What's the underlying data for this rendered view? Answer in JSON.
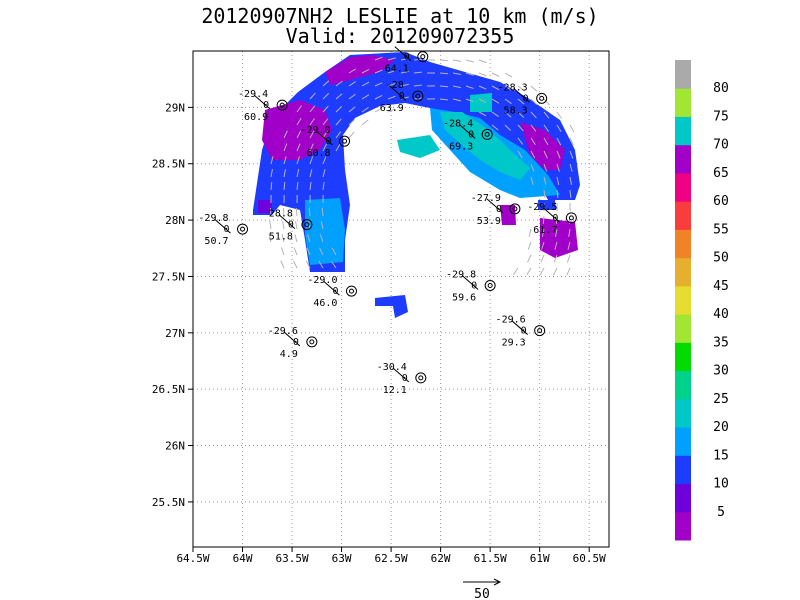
{
  "chart_data": {
    "type": "heatmap",
    "title": "20120907NH2 LESLIE at 10 km (m/s)",
    "subtitle": "Valid: 201209072355",
    "xlim": [
      -64.5,
      -60.3
    ],
    "ylim": [
      25.1,
      29.5
    ],
    "x_ticks": [
      "64.5W",
      "64W",
      "63.5W",
      "63W",
      "62.5W",
      "62W",
      "61.5W",
      "61W",
      "60.5W"
    ],
    "x_tick_values": [
      -64.5,
      -64,
      -63.5,
      -63,
      -62.5,
      -62,
      -61.5,
      -61,
      -60.5
    ],
    "y_ticks": [
      "25.5N",
      "26N",
      "26.5N",
      "27N",
      "27.5N",
      "28N",
      "28.5N",
      "29N"
    ],
    "y_tick_values": [
      25.5,
      26,
      26.5,
      27,
      27.5,
      28,
      28.5,
      29
    ],
    "grid": true,
    "colorbar": {
      "labels": [
        "5",
        "10",
        "15",
        "20",
        "25",
        "30",
        "35",
        "40",
        "45",
        "50",
        "55",
        "60",
        "65",
        "70",
        "75",
        "80"
      ],
      "colors": [
        "#a000c8",
        "#6e00dc",
        "#1e3cff",
        "#00a0ff",
        "#00c8c8",
        "#00d28c",
        "#00dc00",
        "#a0e632",
        "#e6dc32",
        "#e6af2d",
        "#f08228",
        "#fa3c3c",
        "#f00082",
        "#a000c8",
        "#00c8c8",
        "#a0e632",
        "#aaaaaa"
      ]
    },
    "stations": [
      {
        "lon": -64.0,
        "lat": 27.92,
        "temp": "-29.8",
        "value": "50.7"
      },
      {
        "lon": -63.35,
        "lat": 27.96,
        "temp": "28.8",
        "value": "51.8"
      },
      {
        "lon": -63.6,
        "lat": 29.02,
        "temp": "-29.4",
        "value": "60.9"
      },
      {
        "lon": -62.97,
        "lat": 28.7,
        "temp": "-29.0",
        "value": "60.8"
      },
      {
        "lon": -62.23,
        "lat": 29.1,
        "temp": "-28",
        "value": "63.9"
      },
      {
        "lon": -62.18,
        "lat": 29.45,
        "temp": "",
        "value": "64.1"
      },
      {
        "lon": -61.53,
        "lat": 28.76,
        "temp": "-28.4",
        "value": "69.3"
      },
      {
        "lon": -60.98,
        "lat": 29.08,
        "temp": "-28.3",
        "value": "58.3"
      },
      {
        "lon": -61.25,
        "lat": 28.1,
        "temp": "-27.9",
        "value": "53.9"
      },
      {
        "lon": -60.68,
        "lat": 28.02,
        "temp": "-29.5",
        "value": "61.7"
      },
      {
        "lon": -62.9,
        "lat": 27.37,
        "temp": "-29.0",
        "value": "46.0"
      },
      {
        "lon": -61.5,
        "lat": 27.42,
        "temp": "-29.8",
        "value": "59.6"
      },
      {
        "lon": -63.3,
        "lat": 26.92,
        "temp": "-29.6",
        "value": "4.9"
      },
      {
        "lon": -61.0,
        "lat": 27.02,
        "temp": "-29.6",
        "value": "29.3"
      },
      {
        "lon": -62.2,
        "lat": 26.6,
        "temp": "-30.4",
        "value": "12.1"
      }
    ],
    "reference_vector_label": "50"
  }
}
